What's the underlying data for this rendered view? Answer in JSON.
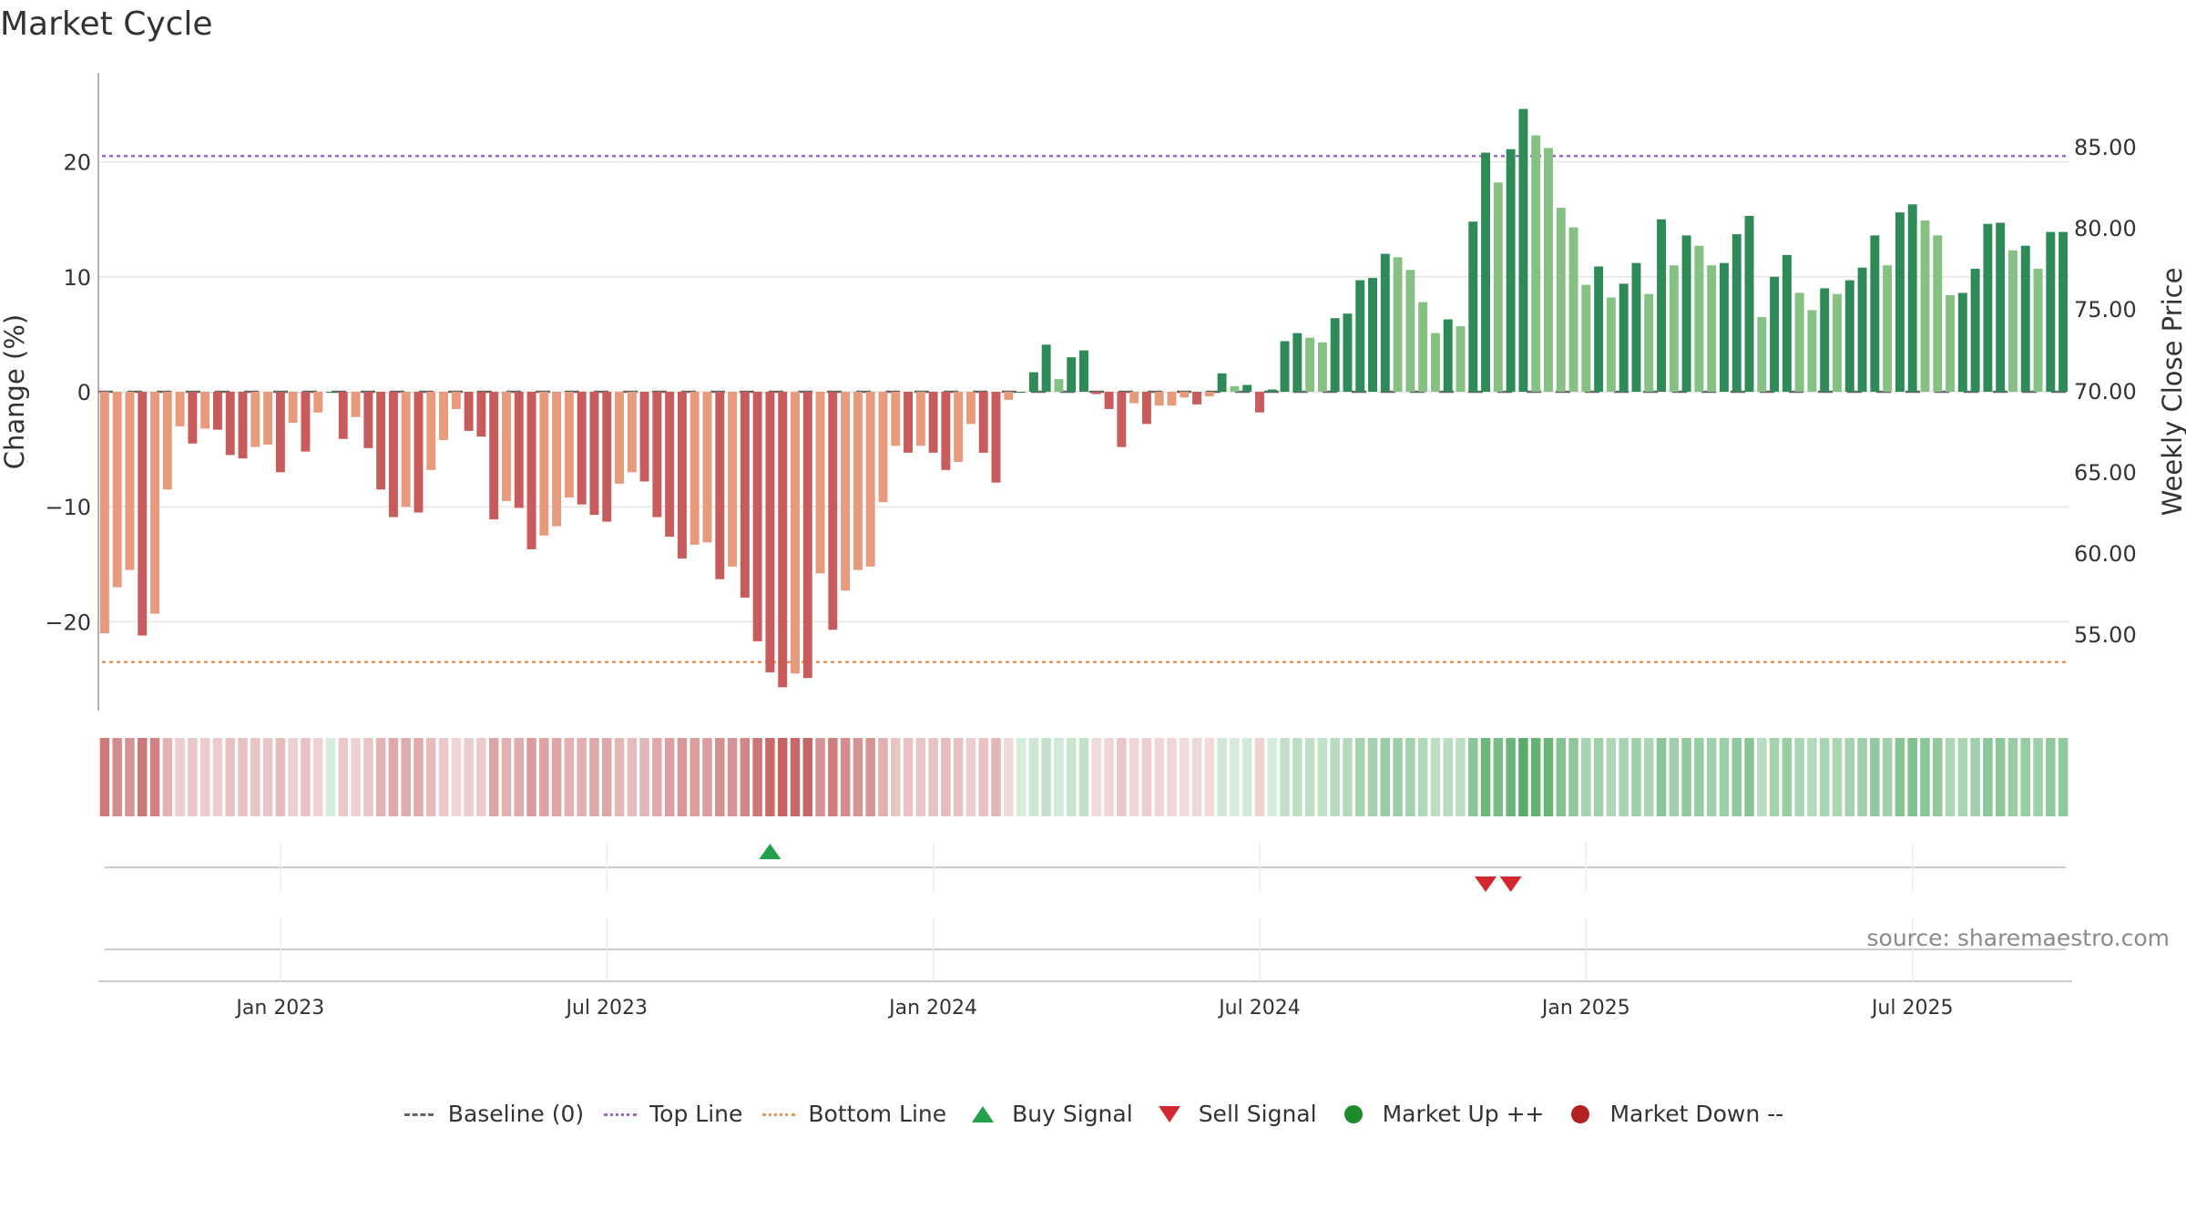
{
  "title": "Market Cycle",
  "source": "source: sharemaestro.com",
  "colors": {
    "red_dark": "#c85c5c",
    "red_light": "#e79b7c",
    "green_dark": "#2e8a57",
    "green_light": "#86c184",
    "top_line": "#9966cc",
    "bottom_line": "#e8955a",
    "baseline": "#666666",
    "buy": "#22a04a",
    "sell": "#d0282e",
    "market_up": "#1e8a2e",
    "market_down": "#b22222"
  },
  "chart_data": {
    "type": "bar",
    "title": "Market Cycle",
    "ylabel": "Change (%)",
    "y2label": "Weekly Close Price",
    "ylim": [
      -28,
      28
    ],
    "y_ticks": [
      20,
      10,
      0,
      -10,
      -20
    ],
    "y2_ticks": [
      "85.00",
      "80.00",
      "75.00",
      "70.00",
      "65.00",
      "60.00",
      "55.00"
    ],
    "x_ticks": [
      "Jan 2023",
      "Jul 2023",
      "Jan 2024",
      "Jul 2024",
      "Jan 2025",
      "Jul 2025"
    ],
    "x_tick_index": [
      14.5,
      40.5,
      66.5,
      92.5,
      118.5,
      144.5
    ],
    "top_line": 20.5,
    "bottom_line": -23.5,
    "series": [
      {
        "values": [
          -21,
          -17,
          -15.5,
          -21.2,
          -19.3,
          -8.5,
          -3,
          -4.5,
          -3.2,
          -3.3,
          -5.5,
          -5.8,
          -4.8,
          -4.6,
          -7,
          -2.7,
          -5.2,
          -1.8,
          0,
          -4.1,
          -2.2,
          -4.9,
          -8.5,
          -10.9,
          -10,
          -10.5,
          -6.8,
          -4.2,
          -1.5,
          -3.4,
          -3.9,
          -11.1,
          -9.5,
          -10.1,
          -13.7,
          -12.5,
          -11.7,
          -9.2,
          -9.8,
          -10.7,
          -11.3,
          -8,
          -7,
          -7.8,
          -10.9,
          -12.6,
          -14.5,
          -13.3,
          -13.1,
          -16.3,
          -15.2,
          -17.9,
          -21.7,
          -24.4,
          -25.7,
          -24.5,
          -24.9,
          -15.8,
          -20.7,
          -17.3,
          -15.5,
          -15.2,
          -9.6,
          -4.7,
          -5.3,
          -4.7,
          -5.3,
          -6.8,
          -6.1,
          -2.8,
          -5.3,
          -7.9,
          -0.7,
          0,
          1.7,
          4.1,
          1.1,
          3,
          3.6,
          -0.2,
          -1.5,
          -4.8,
          -1,
          -2.8,
          -1.2,
          -1.2,
          -0.5,
          -1.1,
          -0.4,
          1.6,
          0.5,
          0.6,
          -1.8,
          0.2,
          4.4,
          5.1,
          4.7,
          4.3,
          6.4,
          6.8,
          9.7,
          9.9,
          12,
          11.7,
          10.6,
          7.8,
          5.1,
          6.3,
          5.7,
          14.8,
          20.8,
          18.2,
          21.1,
          24.6,
          22.3,
          21.2,
          16,
          14.3,
          9.3,
          10.9,
          8.2,
          9.4,
          11.2,
          8.5,
          15,
          11,
          13.6,
          12.7,
          11,
          11.2,
          13.7,
          15.3,
          6.5,
          10,
          11.9,
          8.6,
          7.1,
          9,
          8.5,
          9.7,
          10.8,
          13.6,
          11,
          15.6,
          16.3,
          14.9,
          13.6,
          8.4,
          8.6,
          10.7,
          14.6,
          14.7,
          12.3,
          12.7,
          10.7,
          13.9,
          13.9
        ]
      }
    ],
    "signals": [
      {
        "type": "Buy Signal",
        "week_index": 53
      },
      {
        "type": "Sell Signal",
        "week_index": 110
      },
      {
        "type": "Sell Signal",
        "week_index": 112
      }
    ]
  },
  "legend": [
    {
      "key": "baseline",
      "label": "Baseline (0)"
    },
    {
      "key": "top",
      "label": "Top Line"
    },
    {
      "key": "bottom",
      "label": "Bottom Line"
    },
    {
      "key": "buy",
      "label": "Buy Signal"
    },
    {
      "key": "sell",
      "label": "Sell Signal"
    },
    {
      "key": "up",
      "label": "Market Up ++"
    },
    {
      "key": "down",
      "label": "Market Down --"
    }
  ]
}
